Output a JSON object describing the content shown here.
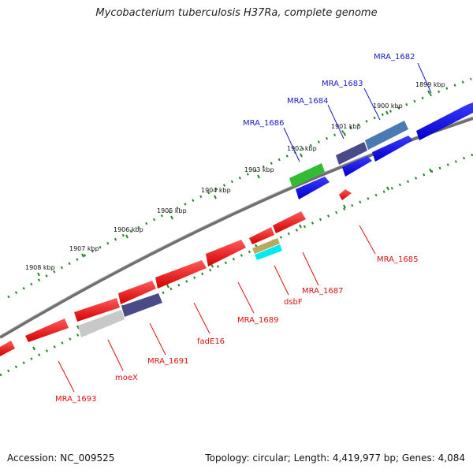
{
  "title": "Mycobacterium tuberculosis H37Ra, complete genome",
  "footer": {
    "accession": "Accession: NC_009525",
    "summary": "Topology: circular; Length: 4,419,977 bp; Genes: 4,084"
  },
  "colors": {
    "backbone": "#777777",
    "ticks": "#228822",
    "forward_label": "#1a1acc",
    "reverse_label": "#dd1111"
  },
  "kbp_labels": [
    "1899 kbp",
    "1900 kbp",
    "1901 kbp",
    "1902 kbp",
    "1903 kbp",
    "1904 kbp",
    "1905 kbp",
    "1906 kbp",
    "1907 kbp",
    "1908 kbp"
  ],
  "forward_labels": [
    "MRA_1682",
    "MRA_1683",
    "MRA_1684",
    "MRA_1686"
  ],
  "reverse_labels": [
    "MRA_1685",
    "MRA_1687",
    "dsbF",
    "MRA_1689",
    "fadE16",
    "MRA_1691",
    "moeX",
    "MRA_1693"
  ]
}
